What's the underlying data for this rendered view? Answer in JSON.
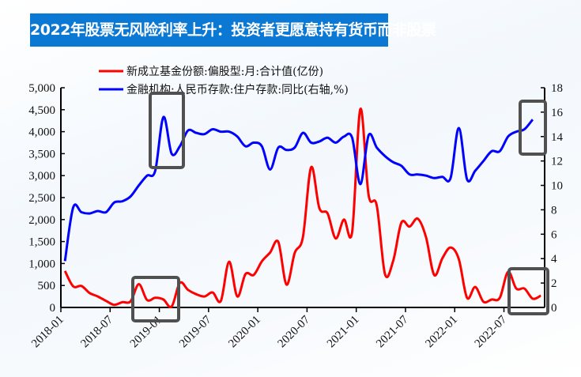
{
  "title": "2022年股票无风险利率上升：投资者更愿意持有货币而非股票",
  "chart_data": {
    "type": "line",
    "title": "2022年股票无风险利率上升：投资者更愿意持有货币而非股票",
    "legend_position": "top-center",
    "grid": false,
    "x_ticks": [
      "2018-01",
      "2018-07",
      "2019-01",
      "2019-07",
      "2020-01",
      "2020-07",
      "2021-01",
      "2021-07",
      "2022-01",
      "2022-07"
    ],
    "y_left": {
      "range": [
        0,
        5000
      ],
      "ticks": [
        "0",
        "500",
        "1,000",
        "1,500",
        "2,000",
        "2,500",
        "3,000",
        "3,500",
        "4,000",
        "4,500",
        "5,000"
      ]
    },
    "y_right": {
      "range": [
        0,
        18
      ],
      "ticks": [
        "0",
        "2",
        "4",
        "6",
        "8",
        "10",
        "12",
        "14",
        "16",
        "18"
      ]
    },
    "series": [
      {
        "name": "新成立基金份额:偏股型:月:合计值(亿份)",
        "axis": "left",
        "color": "#ff0000",
        "start": "2018-01",
        "values": [
          830,
          480,
          490,
          330,
          250,
          150,
          60,
          120,
          140,
          530,
          170,
          220,
          180,
          20,
          560,
          400,
          300,
          250,
          340,
          150,
          1040,
          250,
          760,
          740,
          1050,
          1250,
          1490,
          520,
          1240,
          1600,
          3190,
          2260,
          2140,
          1570,
          2000,
          1720,
          4515,
          2560,
          2320,
          760,
          1060,
          1930,
          1840,
          2020,
          1600,
          740,
          1120,
          1365,
          1100,
          220,
          465,
          130,
          180,
          220,
          810,
          430,
          430,
          200,
          270
        ]
      },
      {
        "name": "金融机构:人民币存款:住户存款:同比(右轴,%)",
        "axis": "right",
        "color": "#0000ff",
        "start": "2018-01",
        "values": [
          3.8,
          8.2,
          7.8,
          7.7,
          7.9,
          7.8,
          8.6,
          8.7,
          9.1,
          10.0,
          10.8,
          11.2,
          15.6,
          12.6,
          13.2,
          14.5,
          14.3,
          14.2,
          14.6,
          14.4,
          14.4,
          14.0,
          13.2,
          13.5,
          13.2,
          11.3,
          13.1,
          12.9,
          13.1,
          14.3,
          13.5,
          13.6,
          13.9,
          13.5,
          14.0,
          13.9,
          10.1,
          14.1,
          13.1,
          12.4,
          11.9,
          11.6,
          10.9,
          10.9,
          10.8,
          10.6,
          10.7,
          10.6,
          14.7,
          10.5,
          11.2,
          12.0,
          12.8,
          12.8,
          14.0,
          14.4,
          14.6,
          15.4
        ]
      }
    ],
    "annotation_color": "#505050"
  }
}
